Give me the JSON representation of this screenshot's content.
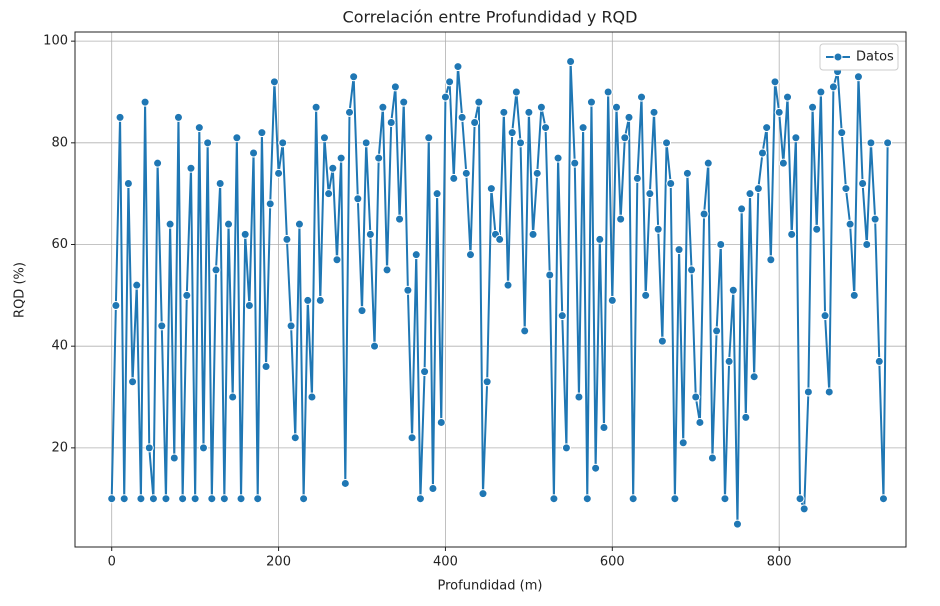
{
  "chart_data": {
    "type": "line",
    "title": "Correlación entre Profundidad y RQD",
    "x_label": "Profundidad (m)",
    "y_label": "RQD (%)",
    "x": [
      0,
      5,
      10,
      15,
      20,
      25,
      30,
      35,
      40,
      45,
      50,
      55,
      60,
      65,
      70,
      75,
      80,
      85,
      90,
      95,
      100,
      105,
      110,
      115,
      120,
      125,
      130,
      135,
      140,
      145,
      150,
      155,
      160,
      165,
      170,
      175,
      180,
      185,
      190,
      195,
      200,
      205,
      210,
      215,
      220,
      225,
      230,
      235,
      240,
      245,
      250,
      255,
      260,
      265,
      270,
      275,
      280,
      285,
      290,
      295,
      300,
      305,
      310,
      315,
      320,
      325,
      330,
      335,
      340,
      345,
      350,
      355,
      360,
      365,
      370,
      375,
      380,
      385,
      390,
      395,
      400,
      405,
      410,
      415,
      420,
      425,
      430,
      435,
      440,
      445,
      450,
      455,
      460,
      465,
      470,
      475,
      480,
      485,
      490,
      495,
      500,
      505,
      510,
      515,
      520,
      525,
      530,
      535,
      540,
      545,
      550,
      555,
      560,
      565,
      570,
      575,
      580,
      585,
      590,
      595,
      600,
      605,
      610,
      615,
      620,
      625,
      630,
      635,
      640,
      645,
      650,
      655,
      660,
      665,
      670,
      675,
      680,
      685,
      690,
      695,
      700,
      705,
      710,
      715,
      720,
      725,
      730,
      735,
      740,
      745,
      750,
      755,
      760,
      765,
      770,
      775,
      780,
      785,
      790,
      795,
      800,
      805,
      810,
      815,
      820,
      825,
      830,
      835,
      840,
      845,
      850,
      855,
      860,
      865,
      870,
      875,
      880,
      885,
      890,
      895,
      900,
      905,
      910,
      915,
      920,
      925,
      930
    ],
    "series": [
      {
        "name": "Datos",
        "color": "#1f77b4",
        "values": [
          10,
          48,
          85,
          10,
          72,
          33,
          52,
          10,
          88,
          20,
          10,
          76,
          44,
          10,
          64,
          18,
          85,
          10,
          50,
          75,
          10,
          83,
          20,
          80,
          10,
          55,
          72,
          10,
          64,
          30,
          81,
          10,
          62,
          48,
          78,
          10,
          82,
          36,
          68,
          92,
          74,
          80,
          61,
          44,
          22,
          64,
          10,
          49,
          30,
          87,
          49,
          81,
          70,
          75,
          57,
          77,
          13,
          86,
          93,
          69,
          47,
          80,
          62,
          40,
          77,
          87,
          55,
          84,
          91,
          65,
          88,
          51,
          22,
          58,
          10,
          35,
          81,
          12,
          70,
          25,
          89,
          92,
          73,
          95,
          85,
          74,
          58,
          84,
          88,
          11,
          33,
          71,
          62,
          61,
          86,
          52,
          82,
          90,
          80,
          43,
          86,
          62,
          74,
          87,
          83,
          54,
          10,
          77,
          46,
          20,
          96,
          76,
          30,
          83,
          10,
          88,
          16,
          61,
          24,
          90,
          49,
          87,
          65,
          81,
          85,
          10,
          73,
          89,
          50,
          70,
          86,
          63,
          41,
          80,
          72,
          10,
          59,
          21,
          74,
          55,
          30,
          25,
          66,
          76,
          18,
          43,
          60,
          10,
          37,
          51,
          5,
          67,
          26,
          70,
          34,
          71,
          78,
          83,
          57,
          92,
          86,
          76,
          89,
          62,
          81,
          10,
          8,
          31,
          87,
          63,
          90,
          46,
          31,
          91,
          94,
          82,
          71,
          64,
          50,
          93,
          72,
          60,
          80,
          65,
          37,
          10,
          80
        ]
      }
    ],
    "xlim": [
      -44,
      952
    ],
    "ylim": [
      0.5,
      101.8
    ],
    "xticks": [
      0,
      200,
      400,
      600,
      800
    ],
    "yticks": [
      20,
      40,
      60,
      80,
      100
    ],
    "grid": true,
    "legend": "upper right"
  }
}
